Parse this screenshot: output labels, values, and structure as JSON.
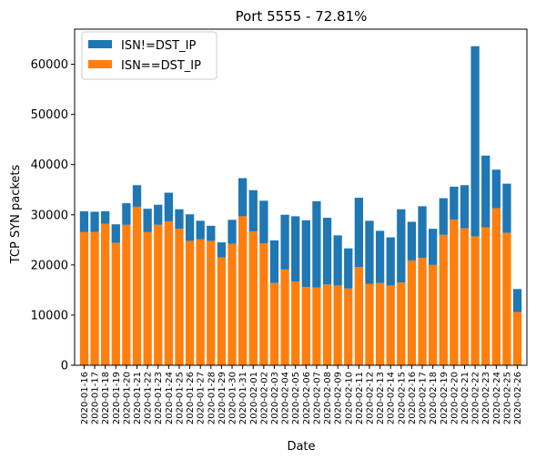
{
  "chart_data": {
    "type": "bar",
    "stacked": true,
    "title": "Port 5555 - 72.81%",
    "xlabel": "Date",
    "ylabel": "TCP SYN packets",
    "ylim": [
      0,
      67000
    ],
    "yticks": [
      0,
      10000,
      20000,
      30000,
      40000,
      50000,
      60000
    ],
    "categories": [
      "2020-01-16",
      "2020-01-17",
      "2020-01-18",
      "2020-01-19",
      "2020-01-20",
      "2020-01-21",
      "2020-01-22",
      "2020-01-23",
      "2020-01-24",
      "2020-01-25",
      "2020-01-26",
      "2020-01-27",
      "2020-01-28",
      "2020-01-29",
      "2020-01-30",
      "2020-01-31",
      "2020-02-01",
      "2020-02-02",
      "2020-02-03",
      "2020-02-04",
      "2020-02-05",
      "2020-02-06",
      "2020-02-07",
      "2020-02-08",
      "2020-02-09",
      "2020-02-10",
      "2020-02-11",
      "2020-02-12",
      "2020-02-13",
      "2020-02-14",
      "2020-02-15",
      "2020-02-16",
      "2020-02-17",
      "2020-02-18",
      "2020-02-19",
      "2020-02-20",
      "2020-02-21",
      "2020-02-22",
      "2020-02-23",
      "2020-02-24",
      "2020-02-25",
      "2020-02-26"
    ],
    "series": [
      {
        "name": "ISN==DST_IP",
        "color": "#ff7f0e",
        "values": [
          26600,
          26600,
          28200,
          24400,
          28000,
          31600,
          26600,
          28000,
          28700,
          27200,
          24800,
          25100,
          24800,
          21500,
          24200,
          29700,
          26700,
          24300,
          16400,
          19100,
          16700,
          15600,
          15500,
          16100,
          15900,
          15300,
          19600,
          16200,
          16400,
          15900,
          16500,
          20900,
          21400,
          20000,
          26000,
          29000,
          27300,
          25700,
          27500,
          31300,
          26400,
          10600
        ]
      },
      {
        "name": "ISN!=DST_IP",
        "color": "#1f77b4",
        "values": [
          4100,
          4000,
          2500,
          3700,
          4300,
          4300,
          4600,
          4000,
          5700,
          3900,
          5300,
          3700,
          3000,
          3000,
          4800,
          7600,
          8200,
          8500,
          8500,
          10900,
          13000,
          13300,
          17200,
          13300,
          10000,
          8000,
          13800,
          12600,
          10400,
          9600,
          14600,
          7700,
          10300,
          7200,
          7300,
          6600,
          8600,
          37900,
          14300,
          7700,
          9800,
          4600
        ]
      }
    ],
    "legend": {
      "placement": "top-left",
      "entries": [
        "ISN!=DST_IP",
        "ISN==DST_IP"
      ]
    },
    "grid": false
  }
}
